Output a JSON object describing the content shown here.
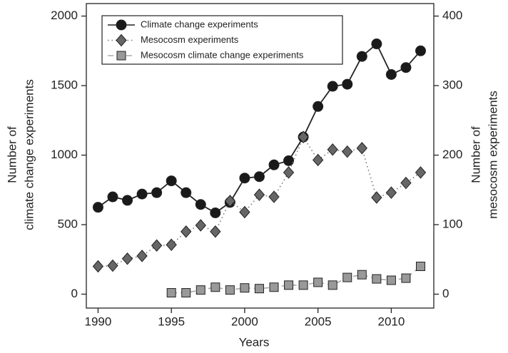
{
  "chart_data": {
    "type": "line",
    "xlabel": "Years",
    "ylabel": [
      "Number of",
      "climate change experiments"
    ],
    "y2label": [
      "Number of",
      "mesocosm experiments"
    ],
    "x": [
      1990,
      1991,
      1992,
      1993,
      1994,
      1995,
      1996,
      1997,
      1998,
      1999,
      2000,
      2001,
      2002,
      2003,
      2004,
      2005,
      2006,
      2007,
      2008,
      2009,
      2010,
      2011,
      2012
    ],
    "xlim": [
      1989.2,
      2012.9
    ],
    "xticks": [
      1990,
      1995,
      2000,
      2005,
      2010
    ],
    "ylim": [
      -100,
      2090
    ],
    "yticks": [
      0,
      500,
      1000,
      1500,
      2000
    ],
    "y2lim": [
      -20,
      418
    ],
    "y2ticks": [
      0,
      100,
      200,
      300,
      400
    ],
    "legend": "upper left",
    "series": [
      {
        "name": "Climate change experiments",
        "color": "#1a1a1a",
        "marker": "circle",
        "linestyle": "solid",
        "values": [
          625,
          700,
          675,
          720,
          730,
          815,
          730,
          645,
          585,
          660,
          835,
          845,
          930,
          960,
          1130,
          1350,
          1495,
          1510,
          1710,
          1800,
          1580,
          1630,
          1750
        ]
      },
      {
        "name": "Mesocosm experiments",
        "color": "#666666",
        "marker": "diamond",
        "linestyle": "dotted",
        "axis": "y2",
        "values": [
          40,
          41,
          51,
          55,
          70,
          71,
          90,
          99,
          90,
          134,
          118,
          143,
          140,
          175,
          226,
          193,
          208,
          205,
          210,
          139,
          146,
          160,
          175
        ]
      },
      {
        "name": "Mesocosm climate change experiments",
        "color": "#999999",
        "marker": "square",
        "linestyle": "dashed",
        "axis": "y2",
        "values": [
          null,
          null,
          null,
          null,
          null,
          2,
          2,
          6,
          10,
          6,
          9,
          8,
          10,
          13,
          13,
          17,
          13,
          24,
          28,
          22,
          20,
          23,
          40
        ]
      }
    ]
  }
}
